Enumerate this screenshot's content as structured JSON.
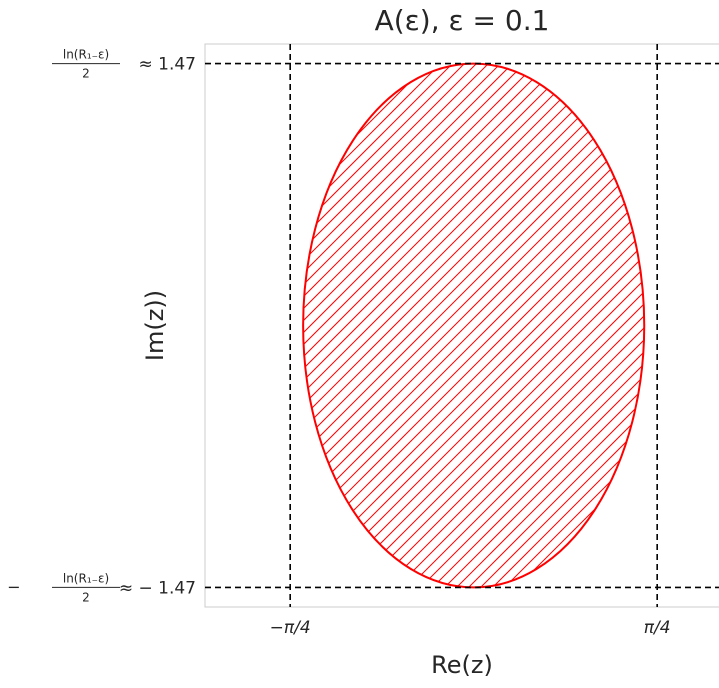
{
  "chart_data": {
    "type": "area",
    "title": "A(ε), ε = 0.1",
    "xlabel": "Re(z)",
    "ylabel": "Im(z))",
    "xlim": [
      -1.15,
      1.05
    ],
    "ylim": [
      -1.58,
      1.58
    ],
    "grid": false,
    "x_ticks": [
      {
        "value": -0.785398,
        "label": "−π/4"
      },
      {
        "value": 0.785398,
        "label": "π/4"
      }
    ],
    "y_ticks": [
      {
        "value": 1.47,
        "label_frac_num": "ln(R₁₋ε)",
        "label_frac_den": "2",
        "label_sign": "",
        "label_approx": "≈ 1.47"
      },
      {
        "value": -1.47,
        "label_frac_num": "ln(R₁₋ε)",
        "label_frac_den": "2",
        "label_sign": "−",
        "label_approx": "≈ − 1.47"
      }
    ],
    "reference_lines": {
      "vertical": [
        -0.785398,
        0.785398
      ],
      "horizontal": [
        1.47,
        -1.47
      ],
      "style": "dashed",
      "color": "#000000"
    },
    "region": {
      "shape": "ellipse",
      "center": [
        0.0,
        0.0
      ],
      "semi_axis_x": 0.73,
      "semi_axis_y": 1.47,
      "edge_color": "#ff0000",
      "hatch": "////",
      "hatch_color": "#ff0000"
    }
  }
}
